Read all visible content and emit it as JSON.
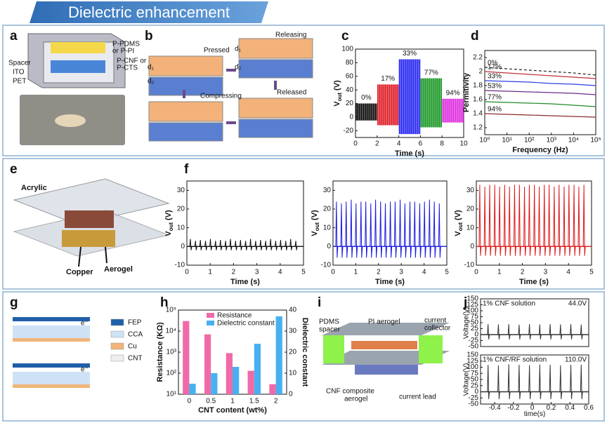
{
  "title": "Dielectric enhancement",
  "panel_letters": [
    "a",
    "b",
    "c",
    "d",
    "e",
    "f",
    "g",
    "h",
    "i",
    "j"
  ],
  "diagram_labels": {
    "a": [
      "P-PDMS",
      "or P-PI",
      "P-CNF or",
      "P-CTS",
      "Spacer",
      "ITO",
      "PET"
    ],
    "b": [
      "Pressed",
      "Releasing",
      "Compressing",
      "Released",
      "d₁",
      "d₂",
      "d₁",
      "d₂"
    ],
    "e": [
      "Acrylic",
      "Copper",
      "Aerogel"
    ],
    "g": [
      "FEP",
      "CCA",
      "Cu",
      "CNT",
      "e⁻",
      "e⁻"
    ],
    "i": [
      "PDMS",
      "spacer",
      "PI aerogel",
      "current",
      "collector",
      "CNF composite",
      "aerogel",
      "current lead"
    ]
  },
  "chart_data": [
    {
      "type": "segments",
      "xlabel": "Time (s)",
      "ylabel_parts": [
        "V",
        "out",
        "(V)"
      ],
      "xlim": [
        0,
        10
      ],
      "xticks": [
        0,
        2,
        4,
        6,
        8,
        10
      ],
      "ylim": [
        -30,
        100
      ],
      "yticks": [
        -20,
        0,
        20,
        40,
        60,
        80,
        100
      ],
      "series": [
        {
          "name": "0%",
          "color": "#111111",
          "x": [
            0,
            2
          ],
          "values": [
            20,
            -5
          ]
        },
        {
          "name": "17%",
          "color": "#e0202a",
          "x": [
            2,
            4
          ],
          "values": [
            48,
            -12
          ]
        },
        {
          "name": "33%",
          "color": "#2a2af0",
          "x": [
            4,
            6
          ],
          "values": [
            85,
            -25
          ]
        },
        {
          "name": "77%",
          "color": "#1f9a2a",
          "x": [
            6,
            8
          ],
          "values": [
            57,
            -15
          ]
        },
        {
          "name": "94%",
          "color": "#e030e0",
          "x": [
            8,
            10
          ],
          "values": [
            27,
            -8
          ]
        }
      ]
    },
    {
      "type": "line",
      "xlabel": "Frequency (Hz)",
      "ylabel": "Permitivity",
      "xscale": "log",
      "xlim": [
        1,
        100000
      ],
      "xticks": [
        {
          "value": 1,
          "label": "10⁰"
        },
        {
          "value": 10,
          "label": "10¹"
        },
        {
          "value": 100,
          "label": "10²"
        },
        {
          "value": 1000,
          "label": "10³"
        },
        {
          "value": 10000,
          "label": "10⁴"
        },
        {
          "value": 100000,
          "label": "10⁵"
        }
      ],
      "ylim": [
        1.1,
        2.3
      ],
      "yticks": [
        1.2,
        1.4,
        1.6,
        1.8,
        2,
        2.2
      ],
      "x": [
        1,
        10,
        100,
        1000,
        10000,
        100000
      ],
      "series": [
        {
          "name": "0%",
          "color": "#222222",
          "dash": true,
          "values": [
            2.06,
            2.04,
            2.02,
            2.0,
            1.98,
            1.95
          ]
        },
        {
          "name": "17%",
          "color": "#c0303a",
          "values": [
            2.0,
            1.98,
            1.96,
            1.94,
            1.92,
            1.9
          ]
        },
        {
          "name": "33%",
          "color": "#2a40e0",
          "values": [
            1.87,
            1.86,
            1.85,
            1.83,
            1.82,
            1.8
          ]
        },
        {
          "name": "53%",
          "color": "#6a2a8a",
          "values": [
            1.73,
            1.72,
            1.71,
            1.7,
            1.69,
            1.67
          ]
        },
        {
          "name": "77%",
          "color": "#1f8a2a",
          "values": [
            1.57,
            1.56,
            1.55,
            1.54,
            1.52,
            1.5
          ]
        },
        {
          "name": "94%",
          "color": "#8a2a2a",
          "values": [
            1.4,
            1.39,
            1.38,
            1.37,
            1.36,
            1.35
          ]
        }
      ]
    },
    {
      "type": "pulse",
      "color": "#111111",
      "xlabel": "Time (s)",
      "ylabel_parts": [
        "V",
        "out",
        "(V)"
      ],
      "xlim": [
        0,
        5
      ],
      "xticks": [
        0,
        1,
        2,
        3,
        4,
        5
      ],
      "ylim": [
        -10,
        35
      ],
      "yticks": [
        -10,
        0,
        10,
        20,
        30
      ],
      "trough": -2,
      "x": [
        0.15,
        0.37,
        0.58,
        0.8,
        1.01,
        1.23,
        1.44,
        1.66,
        1.87,
        2.09,
        2.3,
        2.52,
        2.73,
        2.95,
        3.16,
        3.38,
        3.59,
        3.81,
        4.02,
        4.24,
        4.45,
        4.67
      ],
      "values": [
        4,
        3,
        3.5,
        3,
        4,
        3,
        3.5,
        3,
        4,
        3,
        3.5,
        3,
        4,
        3,
        3.5,
        3,
        4,
        3,
        3.5,
        3,
        4,
        3
      ]
    },
    {
      "type": "pulse",
      "color": "#1a1ae0",
      "xlabel": "Time (s)",
      "ylabel_parts": [
        "V",
        "out",
        "(V)"
      ],
      "xlim": [
        0,
        5
      ],
      "xticks": [
        0,
        1,
        2,
        3,
        4,
        5
      ],
      "ylim": [
        -10,
        35
      ],
      "yticks": [
        -10,
        0,
        10,
        20,
        30
      ],
      "trough": -6,
      "x": [
        0.15,
        0.37,
        0.58,
        0.8,
        1.01,
        1.23,
        1.44,
        1.66,
        1.87,
        2.09,
        2.3,
        2.52,
        2.73,
        2.95,
        3.16,
        3.38,
        3.59,
        3.81,
        4.02,
        4.24,
        4.45,
        4.67
      ],
      "values": [
        24,
        23,
        24,
        25,
        23,
        24,
        24,
        23,
        25,
        24,
        23,
        24,
        24,
        25,
        23,
        24,
        24,
        23,
        24,
        25,
        24,
        23
      ]
    },
    {
      "type": "pulse",
      "color": "#e01818",
      "xlabel": "Time (s)",
      "ylabel_parts": [
        "V",
        "out",
        "(V)"
      ],
      "xlim": [
        0,
        5
      ],
      "xticks": [
        0,
        1,
        2,
        3,
        4,
        5
      ],
      "ylim": [
        -10,
        35
      ],
      "yticks": [
        -10,
        0,
        10,
        20,
        30
      ],
      "trough": -5,
      "x": [
        0.15,
        0.37,
        0.58,
        0.8,
        1.01,
        1.23,
        1.44,
        1.66,
        1.87,
        2.09,
        2.3,
        2.52,
        2.73,
        2.95,
        3.16,
        3.38,
        3.59,
        3.81,
        4.02,
        4.24,
        4.45,
        4.67
      ],
      "values": [
        33,
        32,
        33,
        33,
        32,
        33,
        32,
        33,
        33,
        32,
        33,
        33,
        32,
        33,
        33,
        32,
        33,
        32,
        33,
        33,
        32,
        33
      ]
    },
    {
      "type": "bar",
      "xlabel": "CNT content (wt%)",
      "ylabel": "Resistance (KΩ)",
      "y2label": "Dielectric constant",
      "yscale": "log",
      "legend": "upper left",
      "categories": [
        "0",
        "0.5",
        "1",
        "1.5",
        "2"
      ],
      "ylim": [
        10,
        100000
      ],
      "yticks": [
        {
          "value": 10,
          "label": "10¹"
        },
        {
          "value": 100,
          "label": "10²"
        },
        {
          "value": 1000,
          "label": "10³"
        },
        {
          "value": 10000,
          "label": "10⁴"
        },
        {
          "value": 100000,
          "label": "10⁵"
        }
      ],
      "y2lim": [
        0,
        40
      ],
      "y2ticks": [
        0,
        10,
        20,
        30,
        40
      ],
      "series": [
        {
          "name": "Resistance",
          "color": "#f06aa8",
          "values": [
            30000,
            7000,
            900,
            130,
            30
          ]
        },
        {
          "name": "Dielectric constant",
          "color": "#48b0f0",
          "axis": "y2",
          "values": [
            5,
            10,
            13,
            24,
            37
          ]
        }
      ]
    },
    {
      "type": "pulse",
      "color": "#333333",
      "ylabel": "Voltage(V)",
      "annotation": "1% CNF solution",
      "value_annotation": "44.0V",
      "xlim": [
        -0.55,
        0.6
      ],
      "ylim": [
        -50,
        150
      ],
      "yticks": [
        -50,
        -25,
        0,
        25,
        50,
        75,
        100,
        125,
        150
      ],
      "trough": -20,
      "x": [
        -0.47,
        -0.36,
        -0.25,
        -0.14,
        -0.03,
        0.08,
        0.19,
        0.3,
        0.41,
        0.52
      ],
      "values": [
        44,
        43,
        44,
        42,
        44,
        43,
        44,
        43,
        44,
        42
      ]
    },
    {
      "type": "pulse",
      "color": "#333333",
      "xlabel": "time(s)",
      "ylabel": "Voltage(V)",
      "annotation": "1% CNF/RF solution",
      "value_annotation": "110.0V",
      "xlim": [
        -0.55,
        0.6
      ],
      "xticks": [
        -0.4,
        -0.2,
        0,
        0.2,
        0.4,
        0.6
      ],
      "ylim": [
        -50,
        150
      ],
      "yticks": [
        -50,
        -25,
        0,
        25,
        50,
        75,
        100,
        125,
        150
      ],
      "trough": -30,
      "x": [
        -0.47,
        -0.36,
        -0.25,
        -0.14,
        -0.03,
        0.08,
        0.19,
        0.3,
        0.41,
        0.52
      ],
      "values": [
        110,
        108,
        112,
        110,
        109,
        111,
        110,
        108,
        110,
        111
      ]
    }
  ]
}
